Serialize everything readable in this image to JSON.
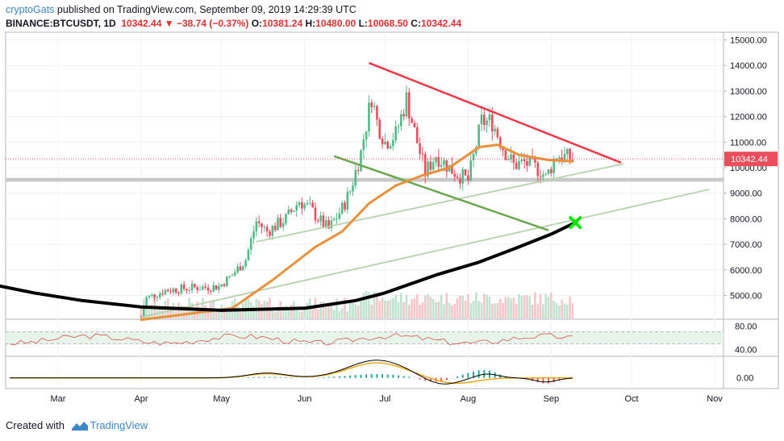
{
  "header": {
    "author": "cryptoGats",
    "published_text": "published on TradingView.com, September 09, 2019 14:29:39 UTC",
    "symbol": "BINANCE:BTCUSDT, 1D",
    "last": "10342.44",
    "change": "−38.74 (−0.37%)",
    "o_label": "O:",
    "o_value": "10381.24",
    "h_label": "H:",
    "h_value": "10480.00",
    "l_label": "L:",
    "l_value": "10068.50",
    "c_label": "C:",
    "c_value": "10342.44"
  },
  "footer": {
    "created_with": "Created with",
    "brand": "TradingView"
  },
  "colors": {
    "up": "#53b987",
    "down": "#eb4d5c",
    "trend_red": "#f23645",
    "ma_orange": "#e8913a",
    "ma_black": "#000000",
    "green_line": "#6aa84f",
    "marker": "#00e600"
  },
  "chart_data": [
    {
      "type": "candlestick",
      "ylim": [
        4100,
        15300
      ],
      "y_ticks": [
        "15000.00",
        "14000.00",
        "13000.00",
        "12000.00",
        "11000.00",
        "10000.00",
        "9000.00",
        "8000.00",
        "7000.00",
        "6000.00",
        "5000.00"
      ],
      "x_ticks": [
        "Mar",
        "Apr",
        "May",
        "Jun",
        "Jul",
        "Aug",
        "Sep",
        "Oct",
        "Nov"
      ],
      "last_price_label": "10342.44",
      "close_path": [
        [
          "2019-04-01",
          4150
        ],
        [
          "2019-04-03",
          4900
        ],
        [
          "2019-04-10",
          5200
        ],
        [
          "2019-04-20",
          5300
        ],
        [
          "2019-04-30",
          5350
        ],
        [
          "2019-05-05",
          5800
        ],
        [
          "2019-05-10",
          6400
        ],
        [
          "2019-05-14",
          7900
        ],
        [
          "2019-05-18",
          7500
        ],
        [
          "2019-05-25",
          8000
        ],
        [
          "2019-05-30",
          8700
        ],
        [
          "2019-06-03",
          8400
        ],
        [
          "2019-06-07",
          7900
        ],
        [
          "2019-06-10",
          7600
        ],
        [
          "2019-06-15",
          8400
        ],
        [
          "2019-06-18",
          9100
        ],
        [
          "2019-06-22",
          10600
        ],
        [
          "2019-06-26",
          12800
        ],
        [
          "2019-06-28",
          11800
        ],
        [
          "2019-07-01",
          11000
        ],
        [
          "2019-07-05",
          11300
        ],
        [
          "2019-07-09",
          12700
        ],
        [
          "2019-07-12",
          11400
        ],
        [
          "2019-07-16",
          9800
        ],
        [
          "2019-07-20",
          10500
        ],
        [
          "2019-07-26",
          9900
        ],
        [
          "2019-08-01",
          9500
        ],
        [
          "2019-08-06",
          11800
        ],
        [
          "2019-08-10",
          11800
        ],
        [
          "2019-08-14",
          10800
        ],
        [
          "2019-08-18",
          10100
        ],
        [
          "2019-08-22",
          10200
        ],
        [
          "2019-08-28",
          9900
        ],
        [
          "2019-08-30",
          9600
        ],
        [
          "2019-09-03",
          10500
        ],
        [
          "2019-09-09",
          10342
        ]
      ],
      "overlays": [
        {
          "kind": "descending_trendline",
          "from": [
            "2019-06-25",
            14100
          ],
          "to": [
            "2019-09-27",
            10200
          ]
        },
        {
          "kind": "rising_trendline",
          "from": [
            "2019-05-14",
            7100
          ],
          "to": [
            "2019-09-28",
            10150
          ]
        },
        {
          "kind": "rising_trendline",
          "from": [
            "2019-04-01",
            4150
          ],
          "to": [
            "2019-10-30",
            9150
          ]
        },
        {
          "kind": "falling_line",
          "from": [
            "2019-06-12",
            10450
          ],
          "to": [
            "2019-08-31",
            7550
          ]
        },
        {
          "kind": "moving_average_orange",
          "points": [
            [
              "2019-04-01",
              4050
            ],
            [
              "2019-04-20",
              4300
            ],
            [
              "2019-05-05",
              4500
            ],
            [
              "2019-05-20",
              5600
            ],
            [
              "2019-06-05",
              6900
            ],
            [
              "2019-06-15",
              7500
            ],
            [
              "2019-06-25",
              8600
            ],
            [
              "2019-07-05",
              9300
            ],
            [
              "2019-07-15",
              9700
            ],
            [
              "2019-07-25",
              10000
            ],
            [
              "2019-08-05",
              10800
            ],
            [
              "2019-08-12",
              10900
            ],
            [
              "2019-08-20",
              10500
            ],
            [
              "2019-08-31",
              10300
            ],
            [
              "2019-09-09",
              10250
            ]
          ]
        },
        {
          "kind": "moving_average_black",
          "points": [
            [
              "2019-02-01",
              5500
            ],
            [
              "2019-02-20",
              5100
            ],
            [
              "2019-03-10",
              4800
            ],
            [
              "2019-04-01",
              4550
            ],
            [
              "2019-05-01",
              4420
            ],
            [
              "2019-06-01",
              4500
            ],
            [
              "2019-06-20",
              4800
            ],
            [
              "2019-07-01",
              5100
            ],
            [
              "2019-07-20",
              5800
            ],
            [
              "2019-08-05",
              6300
            ],
            [
              "2019-08-20",
              6900
            ],
            [
              "2019-09-01",
              7400
            ],
            [
              "2019-09-09",
              7800
            ]
          ]
        },
        {
          "kind": "marker_x",
          "at": [
            "2019-09-10",
            7850
          ]
        },
        {
          "kind": "support_band",
          "y": [
            9450,
            9600
          ]
        }
      ]
    },
    {
      "type": "line",
      "name": "oscillator",
      "y_ticks": [
        "80.00",
        "40.00"
      ],
      "ylim": [
        30,
        90
      ],
      "band": [
        70,
        50
      ]
    },
    {
      "type": "line",
      "name": "macd",
      "y_ticks": [
        "0.00"
      ]
    }
  ]
}
